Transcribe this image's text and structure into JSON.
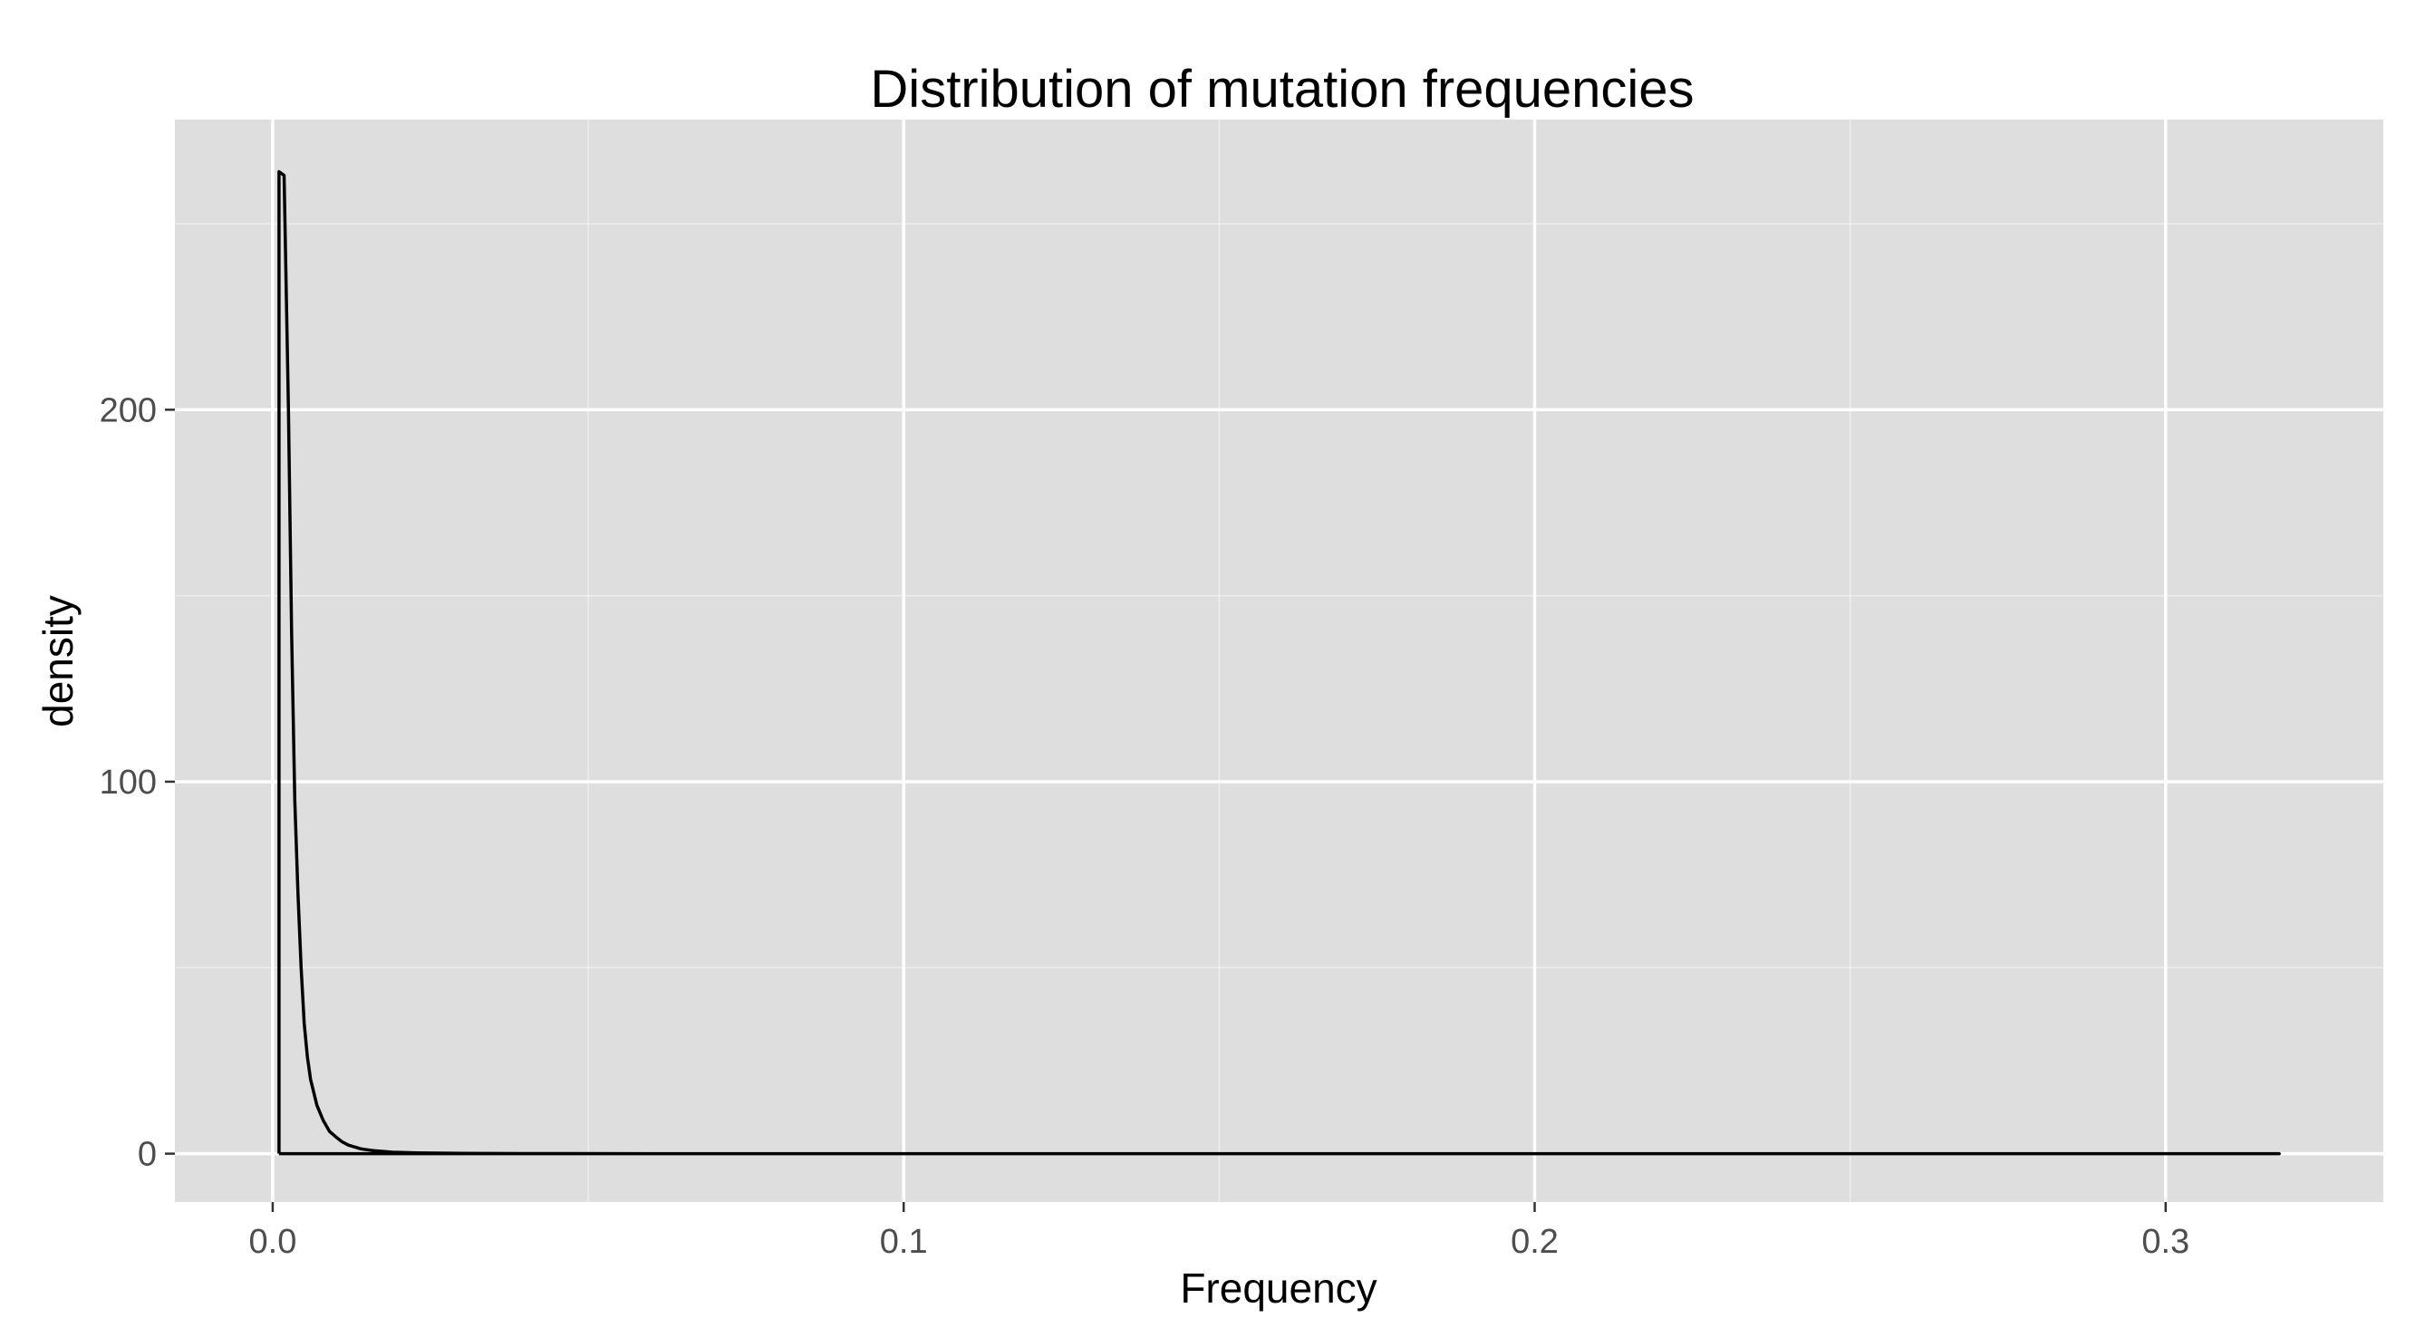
{
  "chart_data": {
    "type": "line",
    "title": "Distribution of mutation frequencies",
    "xlabel": "Frequency",
    "ylabel": "density",
    "xlim": [
      -0.0155,
      0.3345
    ],
    "ylim": [
      -13,
      278
    ],
    "x_ticks": [
      0.0,
      0.1,
      0.2,
      0.3
    ],
    "x_tick_labels": [
      "0.0",
      "0.1",
      "0.2",
      "0.3"
    ],
    "x_minor_ticks": [
      0.05,
      0.15,
      0.25
    ],
    "y_ticks": [
      0,
      100,
      200
    ],
    "y_tick_labels": [
      "0",
      "100",
      "200"
    ],
    "y_minor_ticks": [
      50,
      150,
      250
    ],
    "grid": true,
    "colors": {
      "panel": "#dedede",
      "grid": "#ffffff",
      "line": "#000000",
      "tick_text": "#4d4d4d"
    },
    "series": [
      {
        "x": [
          0.001,
          0.001,
          0.0018,
          0.0025,
          0.003,
          0.0035,
          0.004,
          0.0045,
          0.005,
          0.0055,
          0.006,
          0.007,
          0.008,
          0.009,
          0.01,
          0.011,
          0.012,
          0.014,
          0.016,
          0.019,
          0.023,
          0.03,
          0.04,
          0.06,
          0.1,
          0.2,
          0.3,
          0.318,
          0.001
        ],
        "y": [
          0,
          264,
          263,
          200,
          140,
          95,
          70,
          50,
          35,
          26,
          20,
          13,
          9,
          6,
          4.5,
          3.2,
          2.3,
          1.3,
          0.8,
          0.4,
          0.2,
          0.08,
          0.03,
          0.01,
          0,
          0,
          0,
          0,
          0
        ]
      }
    ]
  }
}
